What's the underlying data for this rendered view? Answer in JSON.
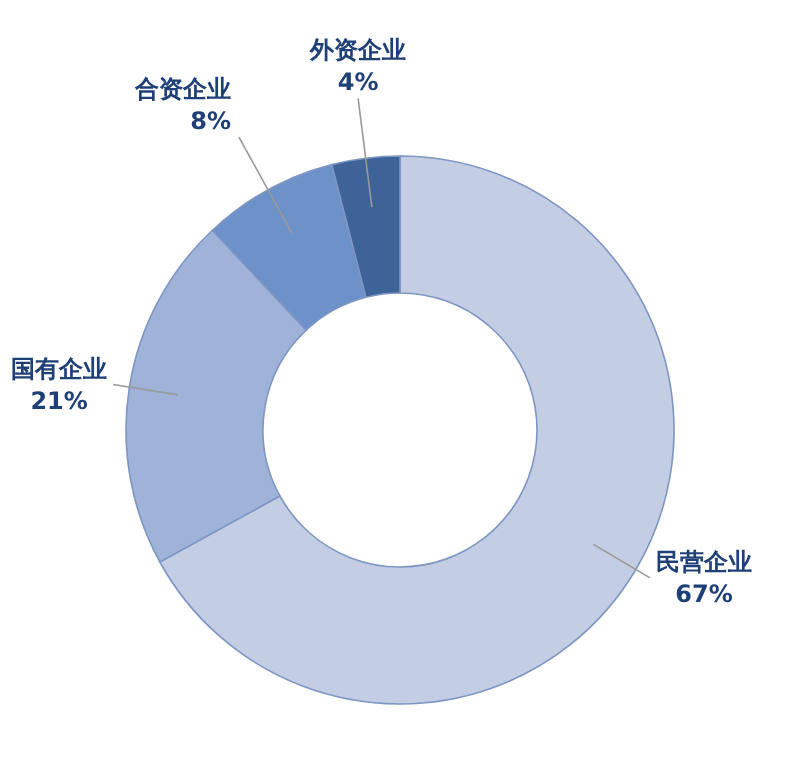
{
  "chart_data": {
    "type": "donut",
    "categories": [
      "民营企业",
      "国有企业",
      "合资企业",
      "外资企业"
    ],
    "values": [
      67,
      21,
      8,
      4
    ],
    "value_labels": [
      "67%",
      "21%",
      "8%",
      "4%"
    ],
    "colors": [
      "#c3cde4",
      "#9fb3d9",
      "#6d92c9",
      "#3e6399"
    ]
  }
}
